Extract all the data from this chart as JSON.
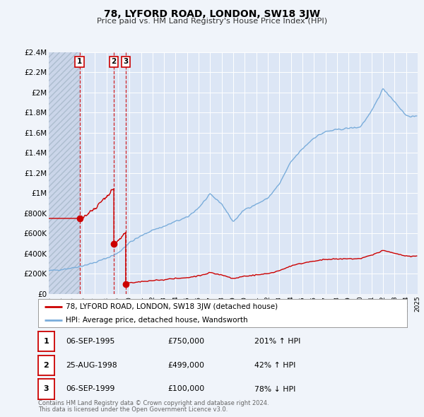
{
  "title": "78, LYFORD ROAD, LONDON, SW18 3JW",
  "subtitle": "Price paid vs. HM Land Registry's House Price Index (HPI)",
  "background_color": "#f0f4fa",
  "plot_bg_color": "#dce6f5",
  "hatch_bg_color": "#c8d4e8",
  "grid_color": "#ffffff",
  "ylim": [
    0,
    2400000
  ],
  "yticks": [
    0,
    200000,
    400000,
    600000,
    800000,
    1000000,
    1200000,
    1400000,
    1600000,
    1800000,
    2000000,
    2200000,
    2400000
  ],
  "ytick_labels": [
    "£0",
    "£200K",
    "£400K",
    "£600K",
    "£800K",
    "£1M",
    "£1.2M",
    "£1.4M",
    "£1.6M",
    "£1.8M",
    "£2M",
    "£2.2M",
    "£2.4M"
  ],
  "sale_dates_decimal": [
    1995.6712,
    1998.6438,
    1999.6712
  ],
  "sale_prices": [
    750000,
    499000,
    100000
  ],
  "sale_labels": [
    "1",
    "2",
    "3"
  ],
  "price_paid_color": "#cc0000",
  "hpi_color": "#7aaddb",
  "legend_label_pp": "78, LYFORD ROAD, LONDON, SW18 3JW (detached house)",
  "legend_label_hpi": "HPI: Average price, detached house, Wandsworth",
  "table_rows": [
    {
      "num": "1",
      "date": "06-SEP-1995",
      "price": "£750,000",
      "change": "201% ↑ HPI"
    },
    {
      "num": "2",
      "date": "25-AUG-1998",
      "price": "£499,000",
      "change": "42% ↑ HPI"
    },
    {
      "num": "3",
      "date": "06-SEP-1999",
      "price": "£100,000",
      "change": "78% ↓ HPI"
    }
  ],
  "footnote1": "Contains HM Land Registry data © Crown copyright and database right 2024.",
  "footnote2": "This data is licensed under the Open Government Licence v3.0.",
  "x_start_year": 1993,
  "x_end_year": 2025,
  "hpi_anchors_x": [
    1993,
    1994,
    1995,
    1996,
    1997,
    1998,
    1999,
    2000,
    2001,
    2002,
    2003,
    2004,
    2005,
    2006,
    2007,
    2008,
    2009,
    2010,
    2011,
    2012,
    2013,
    2014,
    2015,
    2016,
    2017,
    2018,
    2019,
    2020,
    2021,
    2022,
    2023,
    2024,
    2025
  ],
  "hpi_anchors_y": [
    230000,
    242000,
    258000,
    282000,
    312000,
    355000,
    405000,
    510000,
    575000,
    635000,
    670000,
    720000,
    760000,
    855000,
    990000,
    895000,
    715000,
    840000,
    890000,
    950000,
    1090000,
    1310000,
    1440000,
    1550000,
    1610000,
    1630000,
    1645000,
    1655000,
    1810000,
    2040000,
    1910000,
    1770000,
    1755000
  ]
}
